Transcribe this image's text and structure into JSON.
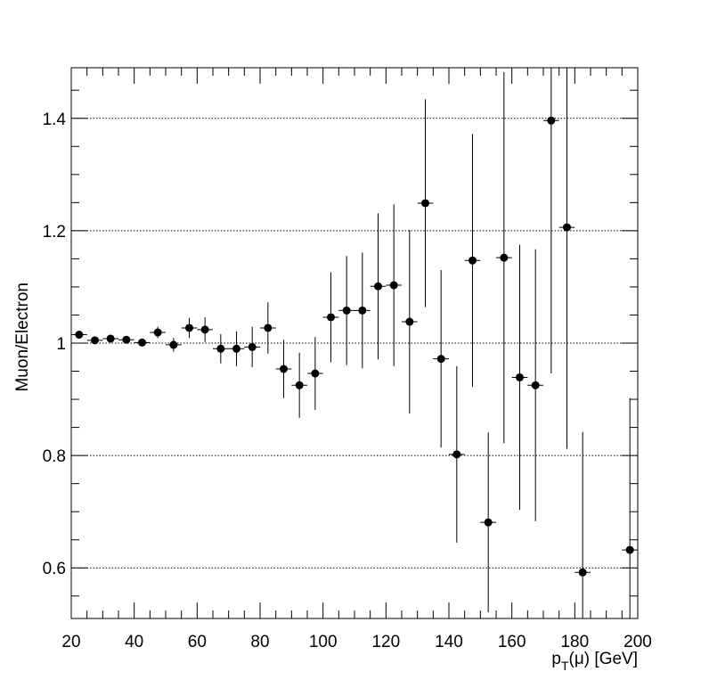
{
  "chart_data": {
    "type": "scatter",
    "title": "",
    "xlabel_main": "p",
    "xlabel_sub": "T",
    "xlabel_rest": "(μ) [GeV]",
    "ylabel": "Muon/Electron",
    "xlim": [
      20,
      200
    ],
    "ylim": [
      0.51,
      1.49
    ],
    "x_ticks": [
      20,
      40,
      60,
      80,
      100,
      120,
      140,
      160,
      180,
      200
    ],
    "x_tick_labels": [
      "20",
      "40",
      "60",
      "80",
      "100",
      "120",
      "140",
      "160",
      "180",
      "200"
    ],
    "y_ticks": [
      0.6,
      0.8,
      1.0,
      1.2,
      1.4
    ],
    "y_tick_labels": [
      "0.6",
      "0.8",
      "1",
      "1.2",
      "1.4"
    ],
    "grid_y": true,
    "grid_x": false,
    "x_bin_half_width": 2.5,
    "series": [
      {
        "points": [
          {
            "x": 22.5,
            "y": 1.015,
            "err": 0.004
          },
          {
            "x": 27.5,
            "y": 1.005,
            "err": 0.004
          },
          {
            "x": 32.5,
            "y": 1.008,
            "err": 0.005
          },
          {
            "x": 37.5,
            "y": 1.006,
            "err": 0.006
          },
          {
            "x": 42.5,
            "y": 1.001,
            "err": 0.007
          },
          {
            "x": 47.5,
            "y": 1.019,
            "err": 0.01
          },
          {
            "x": 52.5,
            "y": 0.997,
            "err": 0.012
          },
          {
            "x": 57.5,
            "y": 1.027,
            "err": 0.018
          },
          {
            "x": 62.5,
            "y": 1.024,
            "err": 0.022
          },
          {
            "x": 67.5,
            "y": 0.99,
            "err": 0.026
          },
          {
            "x": 72.5,
            "y": 0.99,
            "err": 0.031
          },
          {
            "x": 77.5,
            "y": 0.993,
            "err": 0.036
          },
          {
            "x": 82.5,
            "y": 1.027,
            "err": 0.046
          },
          {
            "x": 87.5,
            "y": 0.954,
            "err": 0.052
          },
          {
            "x": 92.5,
            "y": 0.925,
            "err": 0.058
          },
          {
            "x": 97.5,
            "y": 0.946,
            "err": 0.065
          },
          {
            "x": 102.5,
            "y": 1.046,
            "err": 0.08
          },
          {
            "x": 107.5,
            "y": 1.058,
            "err": 0.097
          },
          {
            "x": 112.5,
            "y": 1.058,
            "err": 0.103
          },
          {
            "x": 117.5,
            "y": 1.101,
            "err": 0.13
          },
          {
            "x": 122.5,
            "y": 1.103,
            "err": 0.144
          },
          {
            "x": 127.5,
            "y": 1.038,
            "err": 0.163
          },
          {
            "x": 132.5,
            "y": 1.249,
            "err": 0.185
          },
          {
            "x": 137.5,
            "y": 0.972,
            "err": 0.158
          },
          {
            "x": 142.5,
            "y": 0.802,
            "err": 0.157
          },
          {
            "x": 147.5,
            "y": 1.147,
            "err": 0.225
          },
          {
            "x": 152.5,
            "y": 0.681,
            "err": 0.16
          },
          {
            "x": 157.5,
            "y": 1.152,
            "err": 0.33
          },
          {
            "x": 162.5,
            "y": 0.939,
            "err": 0.236
          },
          {
            "x": 167.5,
            "y": 0.925,
            "err": 0.242
          },
          {
            "x": 172.5,
            "y": 1.396,
            "err": 0.45
          },
          {
            "x": 177.5,
            "y": 1.206,
            "err": 0.394
          },
          {
            "x": 182.5,
            "y": 0.592,
            "err": 0.25
          },
          {
            "x": 197.5,
            "y": 0.632,
            "err": 0.27
          }
        ]
      }
    ]
  }
}
